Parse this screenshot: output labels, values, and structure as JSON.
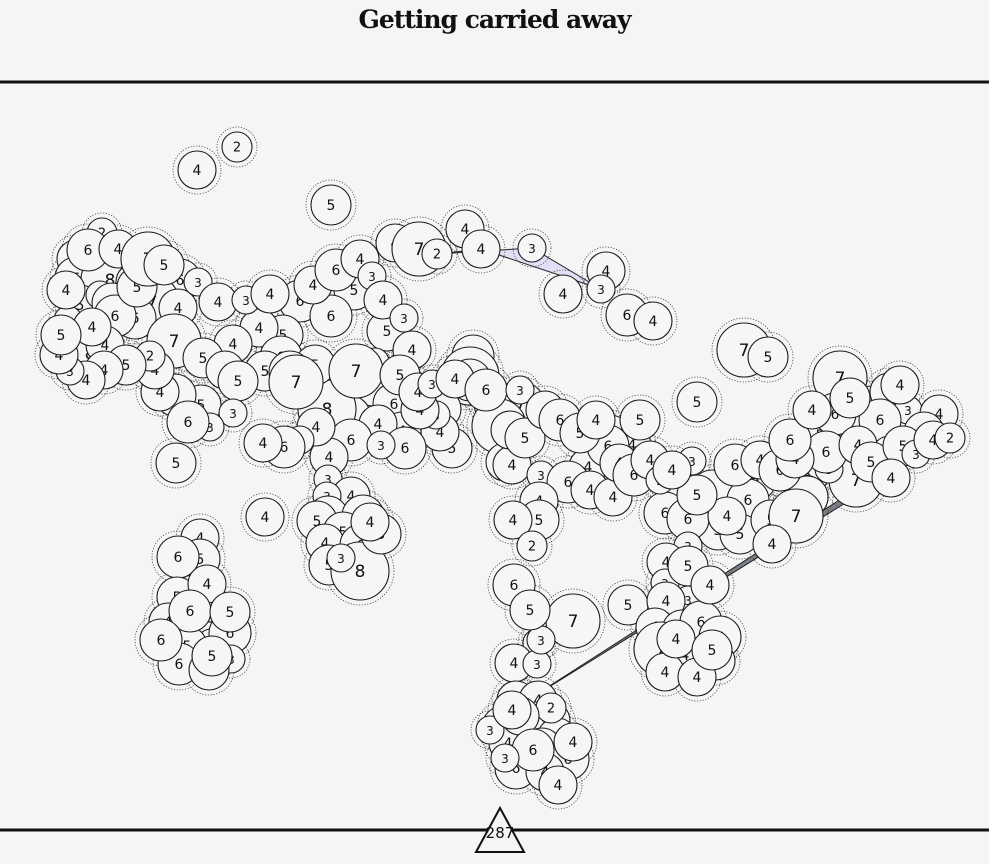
{
  "title": "Getting carried away",
  "footer_count": "287",
  "colors": {
    "background": "#f6f5f6",
    "node_fill": "#f7f6f7",
    "node_stroke": "#1c1c1c",
    "polygon_lavender": "#e2def5",
    "polygon_gray": "#7b8088"
  },
  "legend_marker": "triangle",
  "node_values": [
    2,
    4,
    5,
    4,
    4,
    7,
    4,
    2,
    3,
    4,
    3,
    4,
    6,
    4,
    2,
    4,
    6,
    6,
    8,
    4,
    6,
    5,
    3,
    5,
    7,
    3,
    4,
    3,
    6,
    6,
    8,
    7,
    4,
    6,
    5,
    6,
    5,
    5,
    4,
    7,
    5,
    4,
    3,
    5,
    4,
    6,
    5,
    5,
    6,
    6,
    5,
    8,
    4,
    6,
    5,
    6,
    4,
    4,
    8,
    7,
    5,
    4,
    7,
    5,
    6,
    7,
    5,
    4,
    5,
    3,
    4,
    5,
    4,
    7,
    5,
    5,
    5,
    4,
    5,
    4,
    4,
    4,
    4,
    3,
    6,
    3,
    6,
    4,
    4,
    3,
    6,
    4,
    3,
    4,
    3,
    4,
    4,
    5,
    6,
    6,
    5,
    5,
    4,
    6,
    6,
    5,
    5,
    6,
    6,
    5,
    5,
    4,
    4,
    5,
    7,
    4,
    6,
    5,
    5,
    8,
    6,
    5,
    4,
    3,
    4,
    3,
    5,
    3,
    4,
    5,
    4,
    5,
    4,
    3,
    6,
    5,
    3,
    6,
    5,
    6,
    7,
    5,
    4,
    4,
    5,
    6,
    6,
    7,
    4,
    4,
    4,
    4,
    3,
    4,
    3,
    4,
    4,
    6,
    5,
    5,
    5,
    5,
    6,
    6,
    4,
    6,
    4,
    6,
    5,
    6,
    5,
    4,
    7,
    7,
    6,
    4,
    6,
    4,
    5,
    5,
    4,
    4,
    5,
    4,
    6,
    5,
    6,
    5,
    4,
    3,
    4,
    2,
    4,
    3,
    4,
    6,
    6,
    4,
    5,
    5,
    3,
    4,
    2,
    4,
    4,
    6,
    4,
    3,
    3,
    2,
    5,
    4,
    3,
    4,
    6,
    3,
    4,
    3,
    6,
    4,
    3,
    3,
    6,
    4,
    4,
    2,
    5,
    4,
    4,
    3,
    4,
    5,
    4,
    6,
    4,
    7,
    5,
    3,
    4,
    3,
    4,
    4,
    6,
    4,
    3,
    4,
    3,
    4,
    5,
    4,
    3,
    4,
    6,
    3,
    4,
    6,
    5,
    4,
    5,
    4,
    3,
    4,
    6,
    4,
    6,
    4,
    6,
    4,
    5,
    4,
    4,
    3,
    4,
    3,
    4,
    5,
    6,
    5,
    4,
    3,
    6,
    3,
    4
  ],
  "links": [
    [
      6,
      8
    ],
    [
      40,
      9
    ]
  ],
  "polygons": [
    [
      6,
      7,
      8,
      10
    ],
    [
      201,
      202,
      204
    ]
  ]
}
